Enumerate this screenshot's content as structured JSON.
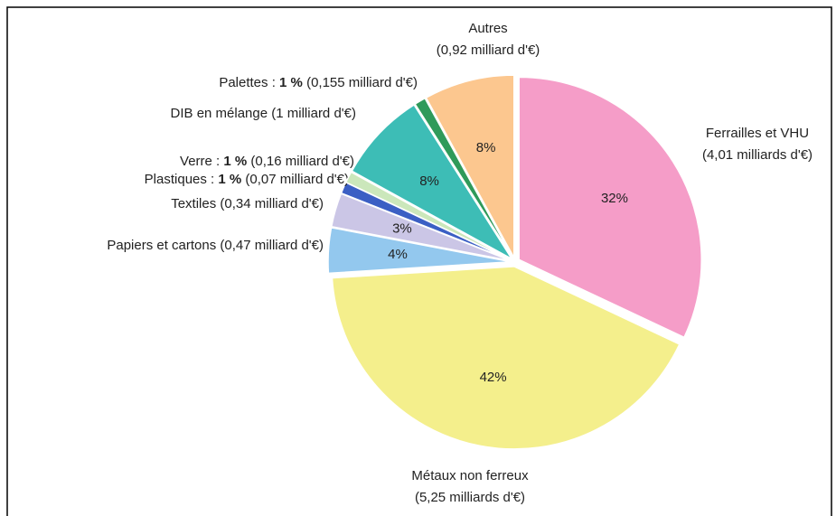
{
  "chart_data": {
    "type": "pie",
    "categories": [
      "Ferrailles et VHU",
      "Métaux non ferreux",
      "Papiers et cartons",
      "Textiles",
      "Plastiques :",
      "Verre :",
      "DIB en mélange",
      "Palettes :",
      "Autres"
    ],
    "amount_labels": [
      "(4,01 milliards d'€)",
      "(5,25 milliards d'€)",
      "(0,47 milliard d'€)",
      "(0,34 milliard d'€)",
      "(0,07 milliard d'€)",
      "(0,16 milliard d'€)",
      "(1 milliard d'€)",
      "(0,155 milliard d'€)",
      "(0,92 milliard d'€)"
    ],
    "values": [
      32,
      42,
      4,
      3,
      1,
      1,
      8,
      1,
      8
    ],
    "value_labels": [
      "32%",
      "42%",
      "4%",
      "3%",
      "1 %",
      "1 %",
      "8%",
      "1 %",
      "8%"
    ],
    "colors": [
      "#f59dc8",
      "#f4ef8c",
      "#93c8ee",
      "#cbc6e6",
      "#3b5fc4",
      "#cbe7bb",
      "#3dbdb6",
      "#2f9a5a",
      "#fcc78f"
    ]
  }
}
